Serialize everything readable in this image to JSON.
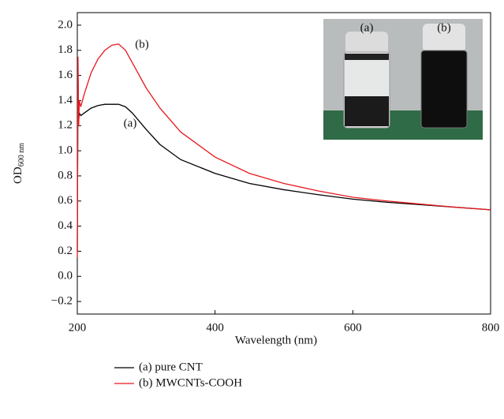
{
  "chart_data": {
    "type": "line",
    "x_label": "Wavelength (nm)",
    "y_label": "OD",
    "y_label_sub": "600 nm",
    "xlim": [
      200,
      800
    ],
    "xticks": [
      200,
      400,
      600,
      800
    ],
    "ylim": [
      -0.3,
      2.1
    ],
    "yticks": [
      {
        "value": -0.2,
        "label": "−0.2"
      },
      {
        "value": 0,
        "label": "0.0"
      },
      0.2,
      0.4,
      0.6,
      0.8,
      {
        "value": 1,
        "label": "1.0"
      },
      1.2,
      1.4,
      1.6,
      1.8,
      {
        "value": 2,
        "label": "2.0"
      }
    ],
    "x": [
      200,
      201,
      202,
      203,
      205,
      210,
      220,
      230,
      240,
      250,
      260,
      270,
      280,
      300,
      320,
      350,
      400,
      450,
      500,
      550,
      600,
      650,
      700,
      750,
      800
    ],
    "series": [
      {
        "name": "(a) pure CNT",
        "color": "#000000",
        "values": [
          0.2,
          1.6,
          1.25,
          1.3,
          1.28,
          1.3,
          1.34,
          1.36,
          1.37,
          1.37,
          1.37,
          1.35,
          1.3,
          1.17,
          1.05,
          0.93,
          0.82,
          0.74,
          0.69,
          0.65,
          0.615,
          0.59,
          0.57,
          0.55,
          0.53
        ]
      },
      {
        "name": "(b) MWCNTs-COOH",
        "color": "#e8191e",
        "values": [
          0.15,
          1.75,
          1.2,
          1.4,
          1.35,
          1.45,
          1.62,
          1.73,
          1.8,
          1.84,
          1.85,
          1.8,
          1.7,
          1.5,
          1.34,
          1.15,
          0.95,
          0.82,
          0.74,
          0.68,
          0.63,
          0.6,
          0.575,
          0.55,
          0.53
        ]
      }
    ],
    "annotations": [
      "(a)",
      "(b)"
    ],
    "inset": {
      "labels": [
        "(a)",
        "(b)"
      ]
    }
  }
}
